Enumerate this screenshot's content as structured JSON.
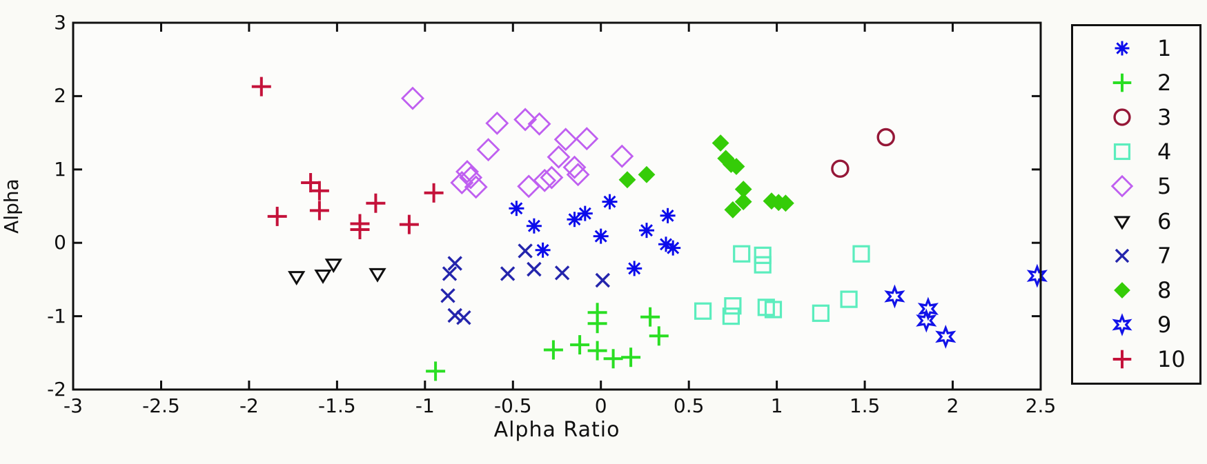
{
  "chart_data": {
    "type": "scatter",
    "title": "",
    "xlabel": "Alpha Ratio",
    "ylabel": "Alpha",
    "xlim": [
      -3,
      2.5
    ],
    "ylim": [
      -2,
      3
    ],
    "xticks": [
      -3,
      -2.5,
      -2,
      -1.5,
      -1,
      -0.5,
      0,
      0.5,
      1,
      1.5,
      2,
      2.5
    ],
    "yticks": [
      -2,
      -1,
      0,
      1,
      2,
      3
    ],
    "grid": false,
    "legend_position": "outside-right",
    "axis_color": "#101010",
    "series": [
      {
        "name": "1",
        "marker": "asterisk",
        "color": "#0b0beb",
        "points": [
          [
            -0.48,
            0.47
          ],
          [
            -0.38,
            0.23
          ],
          [
            -0.33,
            -0.1
          ],
          [
            -0.15,
            0.32
          ],
          [
            -0.09,
            0.4
          ],
          [
            0.05,
            0.56
          ],
          [
            0.0,
            0.09
          ],
          [
            0.26,
            0.17
          ],
          [
            0.38,
            0.37
          ],
          [
            0.19,
            -0.35
          ],
          [
            0.37,
            -0.02
          ],
          [
            0.41,
            -0.07
          ]
        ]
      },
      {
        "name": "2",
        "marker": "plus",
        "color": "#2ade23",
        "points": [
          [
            -0.94,
            -1.75
          ],
          [
            -0.27,
            -1.46
          ],
          [
            -0.12,
            -1.39
          ],
          [
            -0.02,
            -0.95
          ],
          [
            -0.02,
            -1.1
          ],
          [
            -0.02,
            -1.47
          ],
          [
            0.07,
            -1.58
          ],
          [
            0.17,
            -1.56
          ],
          [
            0.28,
            -1.01
          ],
          [
            0.33,
            -1.27
          ]
        ]
      },
      {
        "name": "3",
        "marker": "circle",
        "color": "#951737",
        "points": [
          [
            1.36,
            1.01
          ],
          [
            1.62,
            1.44
          ]
        ]
      },
      {
        "name": "4",
        "marker": "square",
        "color": "#5bedbd",
        "points": [
          [
            0.8,
            -0.15
          ],
          [
            0.92,
            -0.17
          ],
          [
            0.92,
            -0.3
          ],
          [
            1.48,
            -0.15
          ],
          [
            0.58,
            -0.93
          ],
          [
            0.75,
            -0.86
          ],
          [
            0.74,
            -1.0
          ],
          [
            0.94,
            -0.88
          ],
          [
            0.98,
            -0.91
          ],
          [
            1.25,
            -0.96
          ],
          [
            1.41,
            -0.77
          ]
        ]
      },
      {
        "name": "5",
        "marker": "diamond",
        "color": "#bf5ff0",
        "points": [
          [
            -1.07,
            1.97
          ],
          [
            -0.59,
            1.63
          ],
          [
            -0.43,
            1.68
          ],
          [
            -0.35,
            1.62
          ],
          [
            -0.2,
            1.41
          ],
          [
            -0.08,
            1.42
          ],
          [
            -0.64,
            1.27
          ],
          [
            0.12,
            1.18
          ],
          [
            -0.24,
            1.17
          ],
          [
            -0.15,
            1.03
          ],
          [
            -0.13,
            0.93
          ],
          [
            -0.76,
            0.97
          ],
          [
            -0.74,
            0.89
          ],
          [
            -0.79,
            0.82
          ],
          [
            -0.71,
            0.76
          ],
          [
            -0.41,
            0.77
          ],
          [
            -0.32,
            0.85
          ],
          [
            -0.28,
            0.89
          ]
        ]
      },
      {
        "name": "6",
        "marker": "triangle-down",
        "color": "#101010",
        "points": [
          [
            -1.73,
            -0.46
          ],
          [
            -1.58,
            -0.44
          ],
          [
            -1.52,
            -0.29
          ],
          [
            -1.27,
            -0.42
          ]
        ]
      },
      {
        "name": "7",
        "marker": "x",
        "color": "#2425ac",
        "points": [
          [
            -0.83,
            -0.28
          ],
          [
            -0.86,
            -0.42
          ],
          [
            -0.87,
            -0.72
          ],
          [
            -0.83,
            -0.99
          ],
          [
            -0.78,
            -1.02
          ],
          [
            -0.53,
            -0.42
          ],
          [
            -0.43,
            -0.11
          ],
          [
            -0.38,
            -0.36
          ],
          [
            -0.22,
            -0.41
          ],
          [
            0.01,
            -0.51
          ]
        ]
      },
      {
        "name": "8",
        "marker": "diamond-filled",
        "color": "#35cc08",
        "points": [
          [
            0.68,
            1.36
          ],
          [
            0.71,
            1.15
          ],
          [
            0.74,
            1.07
          ],
          [
            0.77,
            1.04
          ],
          [
            0.81,
            0.73
          ],
          [
            0.81,
            0.56
          ],
          [
            0.75,
            0.45
          ],
          [
            0.97,
            0.57
          ],
          [
            1.01,
            0.55
          ],
          [
            1.05,
            0.54
          ],
          [
            0.15,
            0.86
          ],
          [
            0.26,
            0.93
          ]
        ]
      },
      {
        "name": "9",
        "marker": "hexagram",
        "color": "#1213e8",
        "points": [
          [
            1.67,
            -0.73
          ],
          [
            1.86,
            -0.9
          ],
          [
            1.85,
            -1.06
          ],
          [
            1.96,
            -1.28
          ],
          [
            2.48,
            -0.45
          ]
        ]
      },
      {
        "name": "10",
        "marker": "plus",
        "color": "#c4123a",
        "points": [
          [
            -1.93,
            2.13
          ],
          [
            -1.84,
            0.36
          ],
          [
            -1.65,
            0.82
          ],
          [
            -1.6,
            0.71
          ],
          [
            -1.6,
            0.44
          ],
          [
            -1.37,
            0.26
          ],
          [
            -1.37,
            0.18
          ],
          [
            -1.28,
            0.54
          ],
          [
            -1.09,
            0.25
          ],
          [
            -0.95,
            0.68
          ]
        ]
      }
    ],
    "legend_entries": [
      "1",
      "2",
      "3",
      "4",
      "5",
      "6",
      "7",
      "8",
      "9",
      "10"
    ]
  }
}
